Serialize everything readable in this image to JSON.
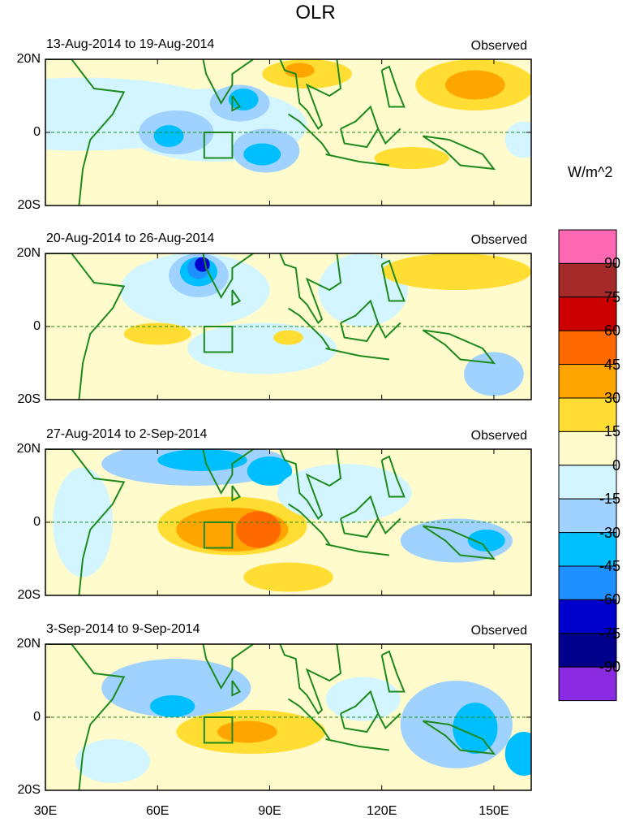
{
  "title": "OLR",
  "panels": [
    {
      "period": "13-Aug-2014 to 19-Aug-2014",
      "label": "Observed"
    },
    {
      "period": "20-Aug-2014 to 26-Aug-2014",
      "label": "Observed"
    },
    {
      "period": "27-Aug-2014 to 2-Sep-2014",
      "label": "Observed"
    },
    {
      "period": "3-Sep-2014 to 9-Sep-2014",
      "label": "Observed"
    }
  ],
  "lat_labels": [
    "20N",
    "0",
    "20S"
  ],
  "lon_labels": [
    "30E",
    "60E",
    "90E",
    "120E",
    "150E"
  ],
  "colorbar": {
    "unit": "W/m^2",
    "levels": [
      "90",
      "75",
      "60",
      "45",
      "30",
      "15",
      "0",
      "-15",
      "-30",
      "-45",
      "-60",
      "-75",
      "-90"
    ],
    "colors": [
      "#FF69B4",
      "#A52A2A",
      "#CC0000",
      "#FF6A00",
      "#FFA500",
      "#FFDD33",
      "#FFFBCC",
      "#D2F5FF",
      "#A0D2FF",
      "#00BFFF",
      "#1E90FF",
      "#0000CD",
      "#00008B",
      "#8A2BE2"
    ]
  }
}
